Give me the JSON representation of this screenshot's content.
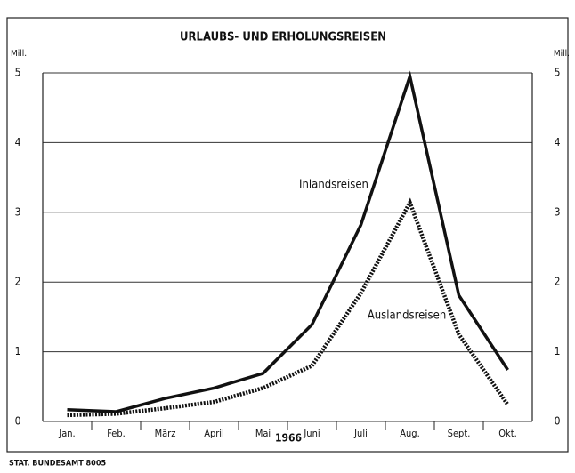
{
  "chart_data": {
    "type": "line",
    "title": "URLAUBS- UND ERHOLUNGSREISEN",
    "y_label": "Mill.",
    "y2_label": "Mill.",
    "x_label": "1966",
    "source": "STAT. BUNDESAMT 8005",
    "categories": [
      "Jan.",
      "Feb.",
      "März",
      "April",
      "Mai",
      "Juni",
      "Juli",
      "Aug.",
      "Sept.",
      "Okt."
    ],
    "series": [
      {
        "name": "Inlandsreisen",
        "color": "#111111",
        "style": "solid",
        "values": [
          0.17,
          0.14,
          0.33,
          0.48,
          0.69,
          1.39,
          2.82,
          4.95,
          1.81,
          0.74
        ]
      },
      {
        "name": "Auslandsreisen",
        "color": "#111111",
        "style": "dotted",
        "values": [
          0.09,
          0.11,
          0.19,
          0.28,
          0.48,
          0.8,
          1.84,
          3.14,
          1.25,
          0.24
        ]
      }
    ],
    "ylim": [
      0,
      5
    ],
    "yticks": [
      0,
      1,
      2,
      3,
      4,
      5
    ],
    "y2lim": [
      0,
      5
    ],
    "y2ticks": [
      0,
      1,
      2,
      3,
      4,
      5
    ],
    "grid": true
  }
}
